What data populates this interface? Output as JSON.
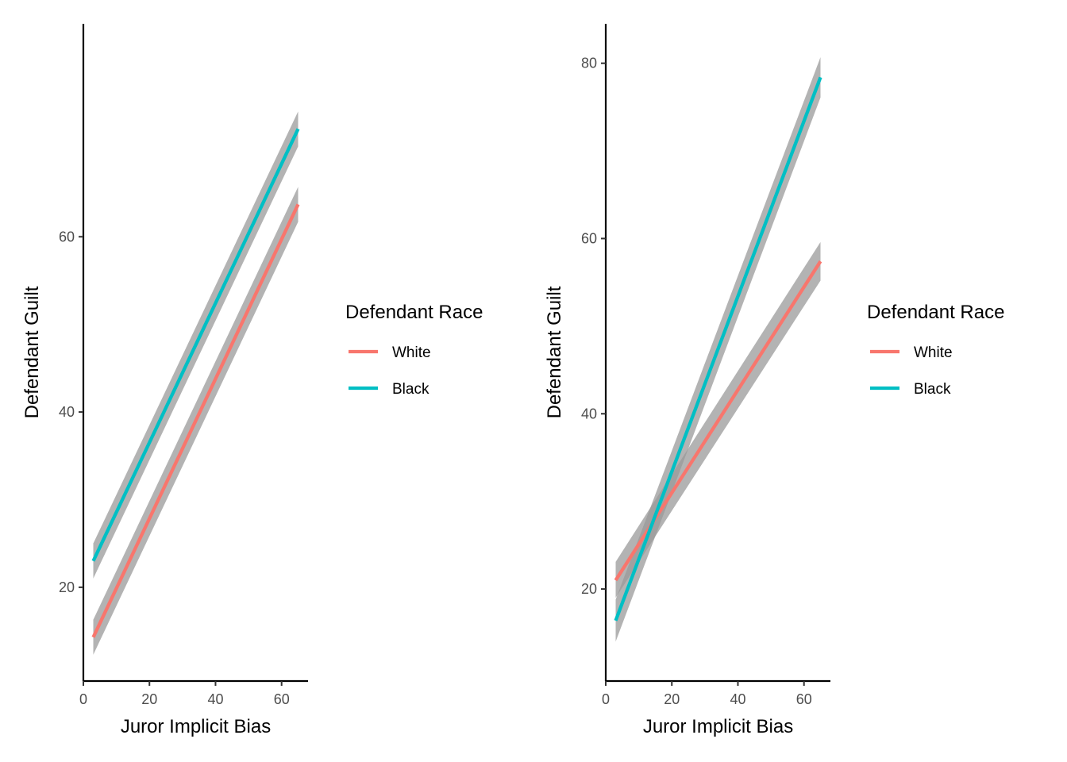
{
  "chart_data": [
    {
      "type": "line",
      "xlabel": "Juror Implicit Bias",
      "ylabel": "Defendant Guilt",
      "xlim": [
        0,
        68
      ],
      "ylim": [
        9.3,
        84.3
      ],
      "xticks": [
        0,
        20,
        40,
        60
      ],
      "yticks": [
        20,
        40,
        60
      ],
      "grid": false,
      "legend": {
        "title": "Defendant Race",
        "position": "right"
      },
      "series": [
        {
          "name": "White",
          "color": "#F8766D",
          "x": [
            3,
            65
          ],
          "y": [
            14.3,
            63.7
          ],
          "ci_lower": [
            12.3,
            61.7
          ],
          "ci_upper": [
            16.3,
            65.7
          ]
        },
        {
          "name": "Black",
          "color": "#00BFC4",
          "x": [
            3,
            65
          ],
          "y": [
            23.0,
            72.3
          ],
          "ci_lower": [
            21.0,
            70.3
          ],
          "ci_upper": [
            25.0,
            74.3
          ]
        }
      ]
    },
    {
      "type": "line",
      "xlabel": "Juror Implicit Bias",
      "ylabel": "Defendant Guilt",
      "xlim": [
        0,
        68
      ],
      "ylim": [
        9.5,
        84.5
      ],
      "xticks": [
        0,
        20,
        40,
        60
      ],
      "yticks": [
        20,
        40,
        60,
        80
      ],
      "grid": false,
      "legend": {
        "title": "Defendant Race",
        "position": "right"
      },
      "series": [
        {
          "name": "White",
          "color": "#F8766D",
          "x": [
            3,
            65
          ],
          "y": [
            21.0,
            57.4
          ],
          "ci_lower": [
            19.0,
            55.2
          ],
          "ci_upper": [
            23.1,
            59.6
          ]
        },
        {
          "name": "Black",
          "color": "#00BFC4",
          "x": [
            3,
            65
          ],
          "y": [
            16.4,
            78.4
          ],
          "ci_lower": [
            14.0,
            76.1
          ],
          "ci_upper": [
            18.8,
            80.7
          ]
        }
      ]
    }
  ]
}
